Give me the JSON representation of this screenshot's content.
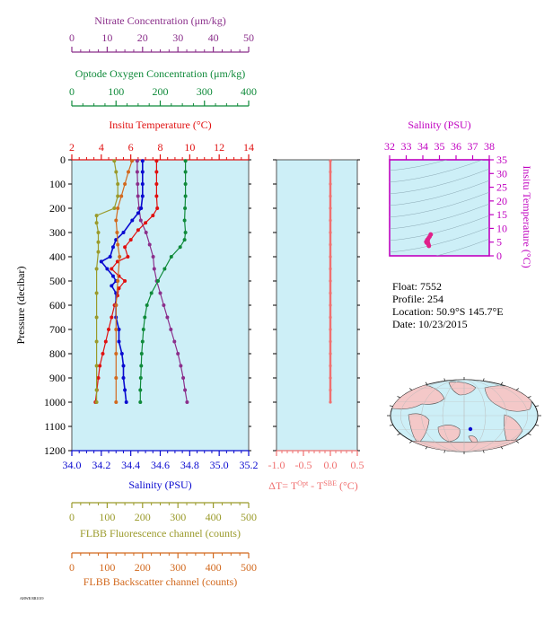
{
  "colors": {
    "nitrate": "#8b2f8b",
    "oxygen": "#0f8a3a",
    "temperature": "#e01010",
    "salinity": "#0a0ad0",
    "fluorescence": "#9a9a2a",
    "backscatter": "#d2691e",
    "delta_t": "#f07070",
    "ts_axis": "#c000c0",
    "panel_bg": "#cdeff7"
  },
  "info": {
    "float": "Float:  7552",
    "profile": "Profile:  254",
    "location": "Location:  50.9°S  145.7°E",
    "date": "Date:  10/23/2015"
  },
  "footer_note": "AHWR RR1019",
  "chart_data": [
    {
      "type": "line",
      "panel": "main-profile",
      "ylabel": "Pressure (decibar)",
      "ylim": [
        1200,
        0
      ],
      "yticks": [
        0,
        100,
        200,
        300,
        400,
        500,
        600,
        700,
        800,
        900,
        1000,
        1100,
        1200
      ],
      "axes": {
        "nitrate": {
          "label": "Nitrate Concentration (μm/kg)",
          "range": [
            0,
            50
          ],
          "ticks": [
            0,
            10,
            20,
            30,
            40,
            50
          ]
        },
        "oxygen": {
          "label": "Optode Oxygen Concentration (μm/kg)",
          "range": [
            0,
            400
          ],
          "ticks": [
            0,
            100,
            200,
            300,
            400
          ]
        },
        "temperature": {
          "label": "Insitu Temperature (°C)",
          "range": [
            2,
            14
          ],
          "ticks": [
            2,
            4,
            6,
            8,
            10,
            12,
            14
          ]
        },
        "salinity": {
          "label": "Salinity (PSU)",
          "range": [
            34.0,
            35.2
          ],
          "ticks": [
            "34.0",
            "34.2",
            "34.4",
            "34.6",
            "34.8",
            "35.0",
            "35.2"
          ]
        },
        "fluorescence": {
          "label": "FLBB Fluorescence channel (counts)",
          "range": [
            0,
            500
          ],
          "ticks": [
            0,
            100,
            200,
            300,
            400,
            500
          ]
        },
        "backscatter": {
          "label": "FLBB Backscatter channel (counts)",
          "range": [
            0,
            500
          ],
          "ticks": [
            0,
            100,
            200,
            300,
            400,
            500
          ]
        }
      },
      "series": [
        {
          "key": "nitrate",
          "values": [
            [
              18.5,
              5
            ],
            [
              18.5,
              50
            ],
            [
              18.6,
              100
            ],
            [
              18.7,
              150
            ],
            [
              19,
              200
            ],
            [
              19.5,
              250
            ],
            [
              21,
              300
            ],
            [
              22,
              350
            ],
            [
              23,
              400
            ],
            [
              23.3,
              450
            ],
            [
              24,
              500
            ],
            [
              25,
              550
            ],
            [
              26,
              600
            ],
            [
              27,
              650
            ],
            [
              28,
              700
            ],
            [
              29,
              750
            ],
            [
              30,
              800
            ],
            [
              30.8,
              850
            ],
            [
              31.5,
              900
            ],
            [
              32,
              950
            ],
            [
              32.6,
              1000
            ]
          ]
        },
        {
          "key": "oxygen",
          "values": [
            [
              257,
              5
            ],
            [
              257,
              50
            ],
            [
              257,
              100
            ],
            [
              257,
              150
            ],
            [
              256,
              200
            ],
            [
              255,
              250
            ],
            [
              257,
              300
            ],
            [
              255,
              330
            ],
            [
              245,
              360
            ],
            [
              225,
              400
            ],
            [
              210,
              450
            ],
            [
              195,
              500
            ],
            [
              180,
              550
            ],
            [
              170,
              600
            ],
            [
              165,
              650
            ],
            [
              162,
              700
            ],
            [
              160,
              750
            ],
            [
              158,
              800
            ],
            [
              157,
              850
            ],
            [
              156,
              900
            ],
            [
              155,
              950
            ],
            [
              155,
              1000
            ]
          ]
        },
        {
          "key": "temperature",
          "values": [
            [
              7.75,
              5
            ],
            [
              7.75,
              50
            ],
            [
              7.75,
              100
            ],
            [
              7.75,
              150
            ],
            [
              7.8,
              200
            ],
            [
              7.5,
              230
            ],
            [
              7,
              260
            ],
            [
              6.5,
              290
            ],
            [
              6,
              330
            ],
            [
              5.6,
              360
            ],
            [
              5.8,
              400
            ],
            [
              5.1,
              420
            ],
            [
              4.7,
              450
            ],
            [
              5.2,
              480
            ],
            [
              5.6,
              500
            ],
            [
              5.2,
              530
            ],
            [
              5.1,
              560
            ],
            [
              4.9,
              600
            ],
            [
              4.7,
              650
            ],
            [
              4.5,
              700
            ],
            [
              4.3,
              750
            ],
            [
              4.1,
              800
            ],
            [
              3.9,
              850
            ],
            [
              3.8,
              900
            ],
            [
              3.7,
              950
            ],
            [
              3.6,
              1000
            ]
          ]
        },
        {
          "key": "salinity",
          "values": [
            [
              34.48,
              5
            ],
            [
              34.48,
              50
            ],
            [
              34.48,
              100
            ],
            [
              34.48,
              150
            ],
            [
              34.47,
              200
            ],
            [
              34.45,
              220
            ],
            [
              34.41,
              250
            ],
            [
              34.35,
              300
            ],
            [
              34.3,
              330
            ],
            [
              34.28,
              360
            ],
            [
              34.26,
              400
            ],
            [
              34.2,
              420
            ],
            [
              34.24,
              450
            ],
            [
              34.28,
              480
            ],
            [
              34.3,
              500
            ],
            [
              34.27,
              520
            ],
            [
              34.3,
              550
            ],
            [
              34.3,
              600
            ],
            [
              34.3,
              650
            ],
            [
              34.32,
              700
            ],
            [
              34.32,
              750
            ],
            [
              34.34,
              800
            ],
            [
              34.35,
              850
            ],
            [
              34.35,
              900
            ],
            [
              34.36,
              950
            ],
            [
              34.37,
              1000
            ]
          ]
        },
        {
          "key": "fluorescence",
          "values": [
            [
              120,
              5
            ],
            [
              125,
              50
            ],
            [
              130,
              100
            ],
            [
              130,
              150
            ],
            [
              120,
              200
            ],
            [
              70,
              230
            ],
            [
              70,
              260
            ],
            [
              75,
              300
            ],
            [
              75,
              340
            ],
            [
              75,
              380
            ],
            [
              70,
              450
            ],
            [
              70,
              550
            ],
            [
              70,
              650
            ],
            [
              70,
              750
            ],
            [
              70,
              850
            ],
            [
              70,
              950
            ],
            [
              70,
              1000
            ]
          ]
        },
        {
          "key": "backscatter",
          "values": [
            [
              170,
              5
            ],
            [
              160,
              50
            ],
            [
              150,
              100
            ],
            [
              140,
              150
            ],
            [
              130,
              200
            ],
            [
              125,
              250
            ],
            [
              128,
              300
            ],
            [
              130,
              350
            ],
            [
              135,
              400
            ],
            [
              130,
              500
            ],
            [
              125,
              600
            ],
            [
              125,
              700
            ],
            [
              125,
              800
            ],
            [
              125,
              900
            ],
            [
              125,
              1000
            ]
          ]
        }
      ]
    },
    {
      "type": "line",
      "panel": "delta-t",
      "xlabel": "ΔT= T^Opt - T^SBE (°C)",
      "xlim": [
        -1.0,
        0.5
      ],
      "xticks": [
        "-1.0",
        "-0.5",
        "0.0",
        "0.5"
      ],
      "ylim": [
        1200,
        0
      ],
      "series": [
        {
          "key": "delta_t",
          "values": [
            [
              0.0,
              5
            ],
            [
              0.0,
              50
            ],
            [
              0.0,
              100
            ],
            [
              0.0,
              150
            ],
            [
              0.0,
              200
            ],
            [
              0.0,
              250
            ],
            [
              0.0,
              300
            ],
            [
              0.0,
              350
            ],
            [
              0.0,
              400
            ],
            [
              0.0,
              450
            ],
            [
              0.0,
              500
            ],
            [
              0.0,
              550
            ],
            [
              0.0,
              600
            ],
            [
              0.0,
              650
            ],
            [
              0.0,
              700
            ],
            [
              0.0,
              750
            ],
            [
              0.0,
              800
            ],
            [
              0.0,
              850
            ],
            [
              0.0,
              900
            ],
            [
              0.0,
              950
            ],
            [
              0.0,
              1000
            ]
          ]
        }
      ]
    },
    {
      "type": "scatter",
      "panel": "ts-diagram",
      "title": "Salinity (PSU)",
      "xlim": [
        32,
        38
      ],
      "xticks": [
        32,
        33,
        34,
        35,
        36,
        37,
        38
      ],
      "ylabel": "Insitu Temperature (°C)",
      "ylim": [
        0,
        35
      ],
      "yticks": [
        0,
        5,
        10,
        15,
        20,
        25,
        30,
        35
      ],
      "series": [
        {
          "key": "ts",
          "values": [
            [
              34.48,
              7.75
            ],
            [
              34.47,
              7.8
            ],
            [
              34.41,
              7.0
            ],
            [
              34.35,
              6.5
            ],
            [
              34.3,
              6.0
            ],
            [
              34.28,
              5.6
            ],
            [
              34.26,
              5.8
            ],
            [
              34.2,
              5.1
            ],
            [
              34.24,
              4.7
            ],
            [
              34.3,
              5.6
            ],
            [
              34.3,
              4.9
            ],
            [
              34.32,
              4.5
            ],
            [
              34.34,
              4.1
            ],
            [
              34.36,
              3.7
            ],
            [
              34.37,
              3.6
            ]
          ]
        }
      ]
    }
  ]
}
